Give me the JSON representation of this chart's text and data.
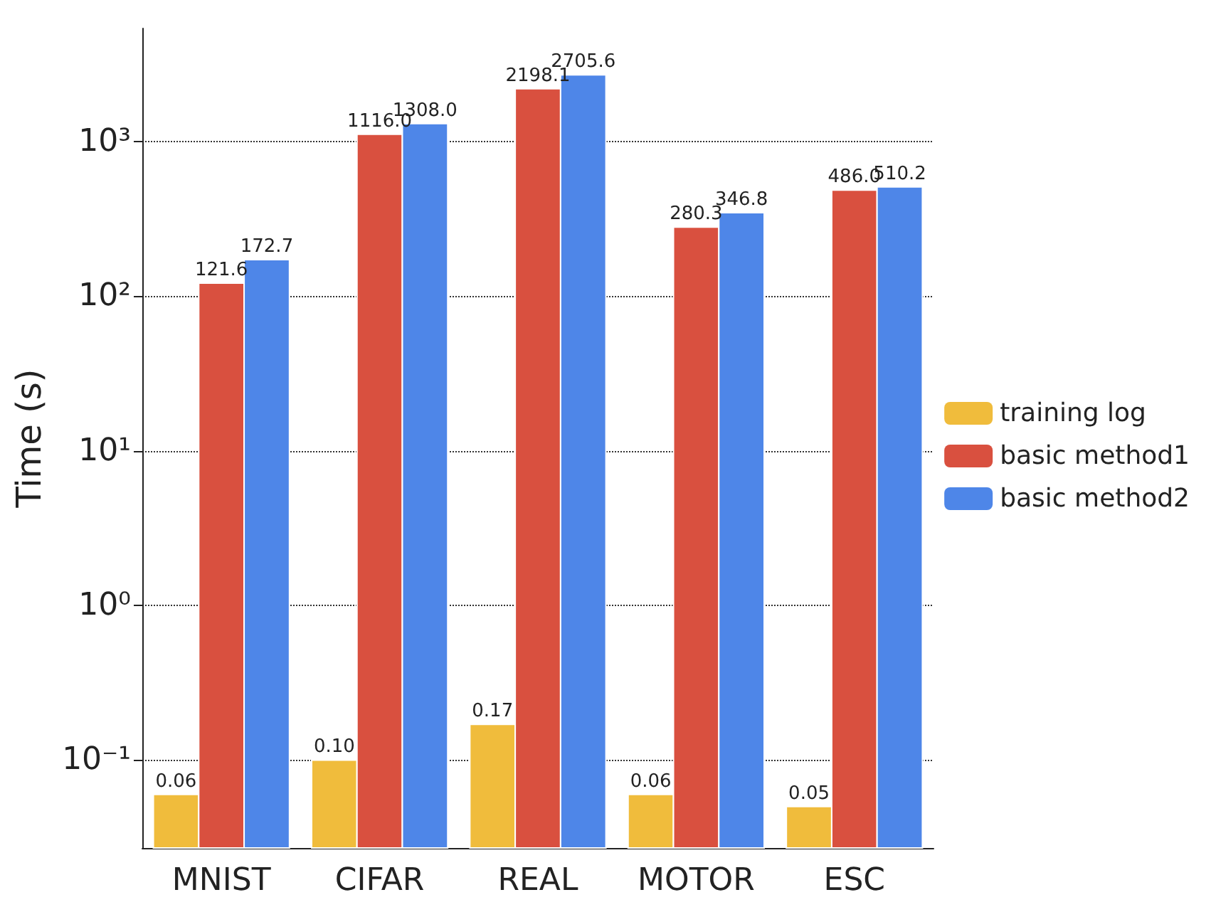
{
  "chart_data": {
    "type": "bar",
    "ylabel": "Time (s)",
    "categories": [
      "MNIST",
      "CIFAR",
      "REAL",
      "MOTOR",
      "ESC"
    ],
    "series": [
      {
        "name": "training log",
        "color": "#f0bc3c",
        "values": [
          0.06,
          0.1,
          0.17,
          0.06,
          0.05
        ],
        "value_labels": [
          "0.06",
          "0.10",
          "0.17",
          "0.06",
          "0.05"
        ]
      },
      {
        "name": "basic method1",
        "color": "#d9503f",
        "values": [
          121.6,
          1116.0,
          2198.1,
          280.3,
          486.0
        ],
        "value_labels": [
          "121.6",
          "1116.0",
          "2198.1",
          "280.3",
          "486.0"
        ]
      },
      {
        "name": "basic method2",
        "color": "#4e86e8",
        "values": [
          172.7,
          1308.0,
          2705.6,
          346.8,
          510.2
        ],
        "value_labels": [
          "172.7",
          "1308.0",
          "2705.6",
          "346.8",
          "510.2"
        ]
      }
    ],
    "log": true,
    "ylim": [
      0.027,
      5400
    ],
    "yticks": [
      {
        "value": 0.1,
        "label": "10⁻¹"
      },
      {
        "value": 1,
        "label": "10⁰"
      },
      {
        "value": 10,
        "label": "10¹"
      },
      {
        "value": 100,
        "label": "10²"
      },
      {
        "value": 1000,
        "label": "10³"
      }
    ],
    "grid": "y",
    "legend": "right"
  }
}
